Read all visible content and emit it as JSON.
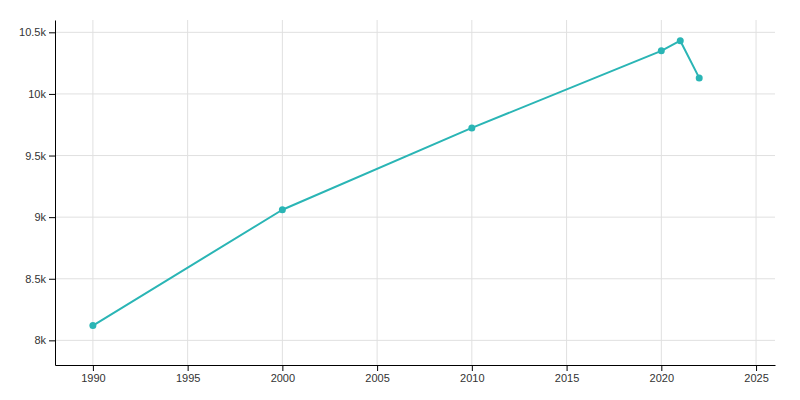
{
  "chart_data": {
    "type": "line",
    "x": [
      1990,
      2000,
      2010,
      2020,
      2021,
      2022
    ],
    "values": [
      8120,
      9060,
      9724,
      10350,
      10432,
      10130
    ],
    "color": "#2ab5b5",
    "marker": "circle",
    "xlim": [
      1988,
      2026
    ],
    "ylim": [
      7800,
      10600
    ],
    "xticks": [
      1990,
      1995,
      2000,
      2005,
      2010,
      2015,
      2020,
      2025
    ],
    "yticks": [
      {
        "value": 8000,
        "label": "8k"
      },
      {
        "value": 8500,
        "label": "8.5k"
      },
      {
        "value": 9000,
        "label": "9k"
      },
      {
        "value": 9500,
        "label": "9.5k"
      },
      {
        "value": 10000,
        "label": "10k"
      },
      {
        "value": 10500,
        "label": "10.5k"
      }
    ],
    "grid": true
  }
}
